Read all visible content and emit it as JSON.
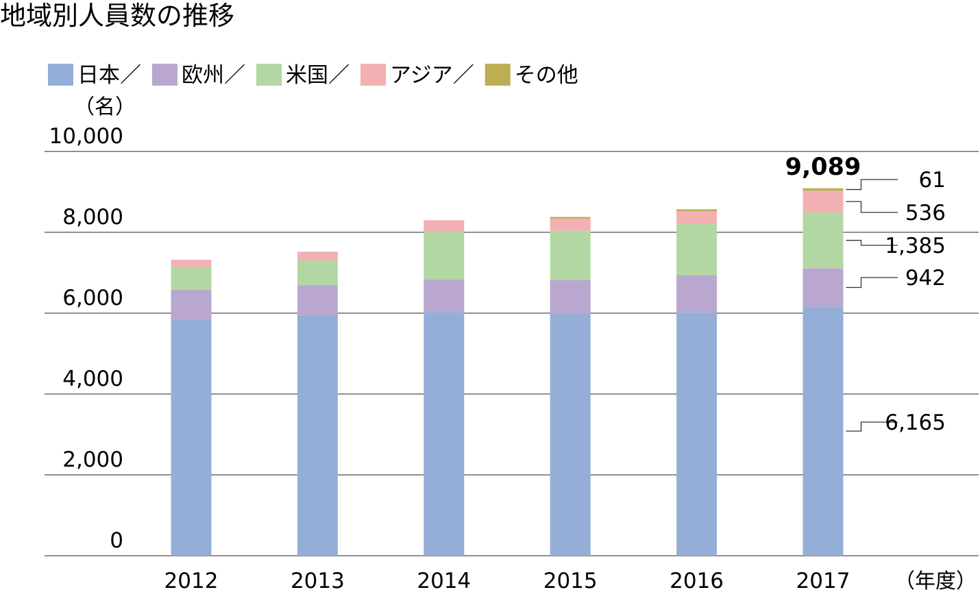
{
  "title": "地域別人員数の推移",
  "unit_label": "（名）",
  "x_unit_label": "（年度）",
  "separator": "／",
  "chart_data": {
    "type": "bar",
    "stacked": true,
    "title": "地域別人員数の推移",
    "ylabel": "（名）",
    "xlabel": "（年度）",
    "ylim": [
      0,
      10000
    ],
    "yticks": [
      0,
      2000,
      4000,
      6000,
      8000,
      10000
    ],
    "ytick_labels": [
      "0",
      "2,000",
      "4,000",
      "6,000",
      "8,000",
      "10,000"
    ],
    "grid": true,
    "legend": "top-left",
    "categories": [
      "2012",
      "2013",
      "2014",
      "2015",
      "2016",
      "2017"
    ],
    "series": [
      {
        "name": "日本",
        "color": "#95aed8",
        "values": [
          5840,
          5940,
          6030,
          5990,
          6020,
          6165
        ]
      },
      {
        "name": "欧州",
        "color": "#b9a7d0",
        "values": [
          740,
          750,
          800,
          830,
          920,
          942
        ]
      },
      {
        "name": "米国",
        "color": "#b3d7a2",
        "values": [
          570,
          620,
          1180,
          1220,
          1280,
          1385
        ]
      },
      {
        "name": "アジア",
        "color": "#f3b0b2",
        "values": [
          170,
          210,
          290,
          300,
          300,
          536
        ]
      },
      {
        "name": "その他",
        "color": "#bdae55",
        "values": [
          0,
          0,
          0,
          40,
          50,
          61
        ]
      }
    ],
    "total_2017": "9,089",
    "labels_2017": [
      {
        "series": "その他",
        "text": "61"
      },
      {
        "series": "アジア",
        "text": "536"
      },
      {
        "series": "米国",
        "text": "1,385"
      },
      {
        "series": "欧州",
        "text": "942"
      },
      {
        "series": "日本",
        "text": "6,165"
      }
    ]
  }
}
